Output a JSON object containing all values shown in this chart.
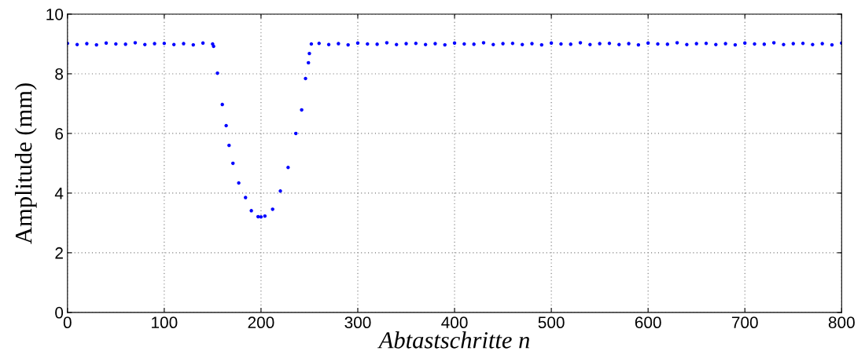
{
  "chart_data": {
    "type": "scatter",
    "xlabel": "Abtastschritte n",
    "ylabel": "Amplitude (mm)",
    "x": [
      0,
      10,
      20,
      30,
      40,
      50,
      60,
      70,
      80,
      90,
      100,
      110,
      120,
      130,
      140,
      150,
      151,
      155,
      160,
      164,
      167,
      171,
      177,
      184,
      190,
      197,
      200,
      204,
      212,
      220,
      228,
      236,
      242,
      246,
      249,
      250,
      252,
      260,
      270,
      280,
      290,
      300,
      310,
      320,
      330,
      340,
      350,
      360,
      370,
      380,
      390,
      400,
      410,
      420,
      430,
      440,
      450,
      460,
      470,
      480,
      490,
      500,
      510,
      520,
      530,
      540,
      550,
      560,
      570,
      580,
      590,
      600,
      610,
      620,
      630,
      640,
      650,
      660,
      670,
      680,
      690,
      700,
      710,
      720,
      730,
      740,
      750,
      760,
      770,
      780,
      790,
      800
    ],
    "series": [
      {
        "color": "#0000ff",
        "values": [
          9.02,
          8.98,
          9.01,
          8.97,
          9.03,
          9.0,
          8.99,
          9.04,
          8.98,
          9.01,
          9.02,
          8.98,
          9.01,
          8.97,
          9.03,
          9.0,
          8.92,
          8.02,
          6.97,
          6.26,
          5.6,
          5.0,
          4.34,
          3.85,
          3.41,
          3.21,
          3.2,
          3.23,
          3.46,
          4.07,
          4.86,
          6.0,
          6.79,
          7.84,
          8.37,
          8.68,
          9.0,
          9.02,
          8.98,
          9.01,
          8.97,
          9.03,
          9.0,
          8.99,
          9.04,
          8.98,
          9.01,
          9.02,
          8.98,
          9.01,
          8.97,
          9.03,
          9.0,
          8.99,
          9.04,
          8.98,
          9.01,
          9.02,
          8.98,
          9.01,
          8.97,
          9.03,
          9.0,
          8.99,
          9.04,
          8.98,
          9.01,
          9.02,
          8.98,
          9.01,
          8.97,
          9.03,
          9.0,
          8.99,
          9.04,
          8.98,
          9.01,
          9.02,
          8.98,
          9.01,
          8.97,
          9.03,
          9.0,
          8.99,
          9.04,
          8.98,
          9.01,
          9.02,
          8.98,
          9.01,
          8.97,
          9.03
        ]
      }
    ],
    "xlim": [
      0,
      800
    ],
    "xticks": [
      0,
      100,
      200,
      300,
      400,
      500,
      600,
      700,
      800
    ],
    "ylim": [
      0,
      10
    ],
    "yticks": [
      0,
      2,
      4,
      6,
      8,
      10
    ],
    "grid": true,
    "marker": "circle"
  }
}
